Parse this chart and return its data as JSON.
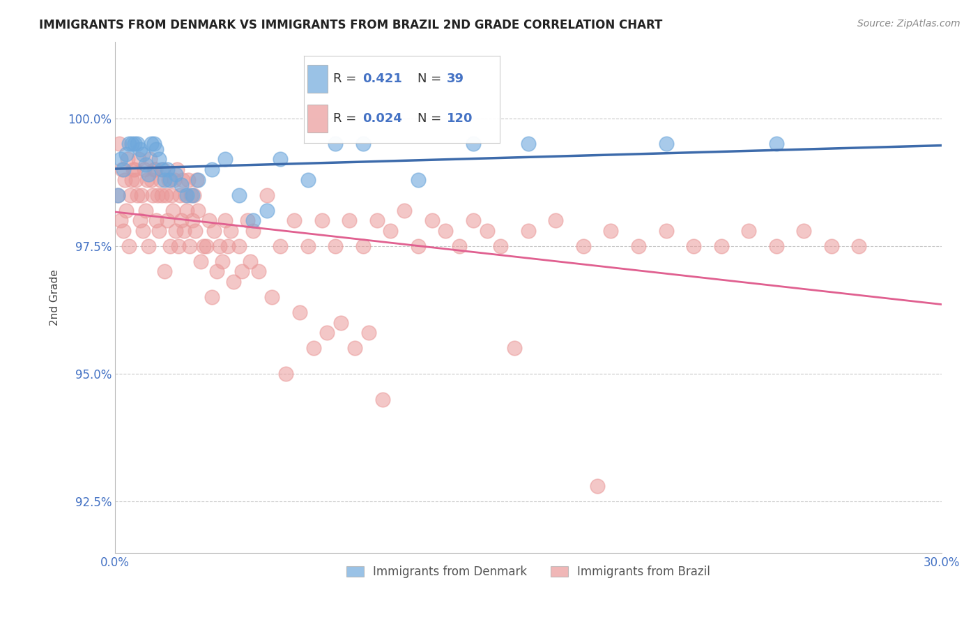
{
  "title": "IMMIGRANTS FROM DENMARK VS IMMIGRANTS FROM BRAZIL 2ND GRADE CORRELATION CHART",
  "source_text": "Source: ZipAtlas.com",
  "ylabel": "2nd Grade",
  "xlim": [
    0.0,
    30.0
  ],
  "ylim": [
    91.5,
    101.5
  ],
  "yticks": [
    92.5,
    95.0,
    97.5,
    100.0
  ],
  "ytick_labels": [
    "92.5%",
    "95.0%",
    "97.5%",
    "100.0%"
  ],
  "xticks": [
    0.0,
    5.0,
    10.0,
    15.0,
    20.0,
    25.0,
    30.0
  ],
  "xtick_labels": [
    "0.0%",
    "",
    "",
    "",
    "",
    "",
    "30.0%"
  ],
  "denmark_color": "#6fa8dc",
  "brazil_color": "#ea9999",
  "denmark_R": 0.421,
  "denmark_N": 39,
  "brazil_R": 0.024,
  "brazil_N": 120,
  "denmark_line_color": "#3d6bab",
  "brazil_line_color": "#e06090",
  "grid_color": "#bbbbbb",
  "tick_label_color": "#4472c4",
  "denmark_x": [
    0.1,
    0.2,
    0.3,
    0.4,
    0.5,
    0.6,
    0.7,
    0.8,
    0.9,
    1.0,
    1.1,
    1.2,
    1.3,
    1.4,
    1.5,
    1.6,
    1.7,
    1.8,
    1.9,
    2.0,
    2.2,
    2.4,
    2.6,
    2.8,
    3.0,
    3.5,
    4.0,
    4.5,
    5.0,
    5.5,
    6.0,
    7.0,
    8.0,
    9.0,
    11.0,
    13.0,
    15.0,
    20.0,
    24.0
  ],
  "denmark_y": [
    98.5,
    99.2,
    99.0,
    99.3,
    99.5,
    99.5,
    99.5,
    99.5,
    99.4,
    99.3,
    99.1,
    98.9,
    99.5,
    99.5,
    99.4,
    99.2,
    99.0,
    98.8,
    99.0,
    98.8,
    98.9,
    98.7,
    98.5,
    98.5,
    98.8,
    99.0,
    99.2,
    98.5,
    98.0,
    98.2,
    99.2,
    98.8,
    99.5,
    99.5,
    98.8,
    99.5,
    99.5,
    99.5,
    99.5
  ],
  "brazil_x": [
    0.1,
    0.2,
    0.3,
    0.4,
    0.5,
    0.6,
    0.7,
    0.8,
    0.9,
    1.0,
    1.1,
    1.2,
    1.3,
    1.4,
    1.5,
    1.6,
    1.7,
    1.8,
    1.9,
    2.0,
    2.1,
    2.2,
    2.3,
    2.4,
    2.5,
    2.6,
    2.7,
    2.8,
    2.9,
    3.0,
    3.2,
    3.4,
    3.6,
    3.8,
    4.0,
    4.2,
    4.5,
    4.8,
    5.0,
    5.5,
    6.0,
    6.5,
    7.0,
    7.5,
    8.0,
    8.5,
    9.0,
    9.5,
    10.0,
    10.5,
    11.0,
    11.5,
    12.0,
    12.5,
    13.0,
    13.5,
    14.0,
    15.0,
    16.0,
    17.0,
    18.0,
    19.0,
    20.0,
    21.0,
    22.0,
    23.0,
    24.0,
    25.0,
    26.0,
    27.0,
    0.15,
    0.25,
    0.35,
    0.45,
    0.55,
    0.65,
    0.75,
    0.85,
    0.95,
    1.05,
    1.15,
    1.25,
    1.35,
    1.45,
    1.55,
    1.65,
    1.75,
    1.85,
    1.95,
    2.05,
    2.15,
    2.25,
    2.35,
    2.45,
    2.55,
    2.65,
    2.75,
    2.85,
    2.95,
    3.1,
    3.3,
    3.5,
    3.7,
    3.9,
    4.1,
    4.3,
    4.6,
    4.9,
    5.2,
    5.7,
    6.2,
    6.7,
    7.2,
    7.7,
    8.2,
    8.7,
    9.2,
    9.7,
    14.5,
    17.5
  ],
  "brazil_y": [
    98.5,
    98.0,
    97.8,
    98.2,
    97.5,
    98.8,
    99.0,
    98.5,
    98.0,
    97.8,
    98.2,
    97.5,
    98.8,
    99.0,
    98.0,
    97.8,
    98.5,
    97.0,
    98.0,
    97.5,
    98.2,
    97.8,
    97.5,
    98.0,
    97.8,
    98.2,
    97.5,
    98.0,
    97.8,
    98.2,
    97.5,
    98.0,
    97.8,
    97.5,
    98.0,
    97.8,
    97.5,
    98.0,
    97.8,
    98.5,
    97.5,
    98.0,
    97.5,
    98.0,
    97.5,
    98.0,
    97.5,
    98.0,
    97.8,
    98.2,
    97.5,
    98.0,
    97.8,
    97.5,
    98.0,
    97.8,
    97.5,
    97.8,
    98.0,
    97.5,
    97.8,
    97.5,
    97.8,
    97.5,
    97.5,
    97.8,
    97.5,
    97.8,
    97.5,
    97.5,
    99.5,
    99.0,
    98.8,
    99.2,
    98.5,
    99.0,
    98.8,
    99.2,
    98.5,
    99.0,
    98.8,
    99.2,
    98.5,
    99.0,
    98.5,
    98.8,
    99.0,
    98.5,
    98.8,
    98.5,
    98.8,
    99.0,
    98.5,
    98.8,
    98.5,
    98.8,
    98.5,
    98.5,
    98.8,
    97.2,
    97.5,
    96.5,
    97.0,
    97.2,
    97.5,
    96.8,
    97.0,
    97.2,
    97.0,
    96.5,
    95.0,
    96.2,
    95.5,
    95.8,
    96.0,
    95.5,
    95.8,
    94.5,
    95.5,
    92.8
  ]
}
